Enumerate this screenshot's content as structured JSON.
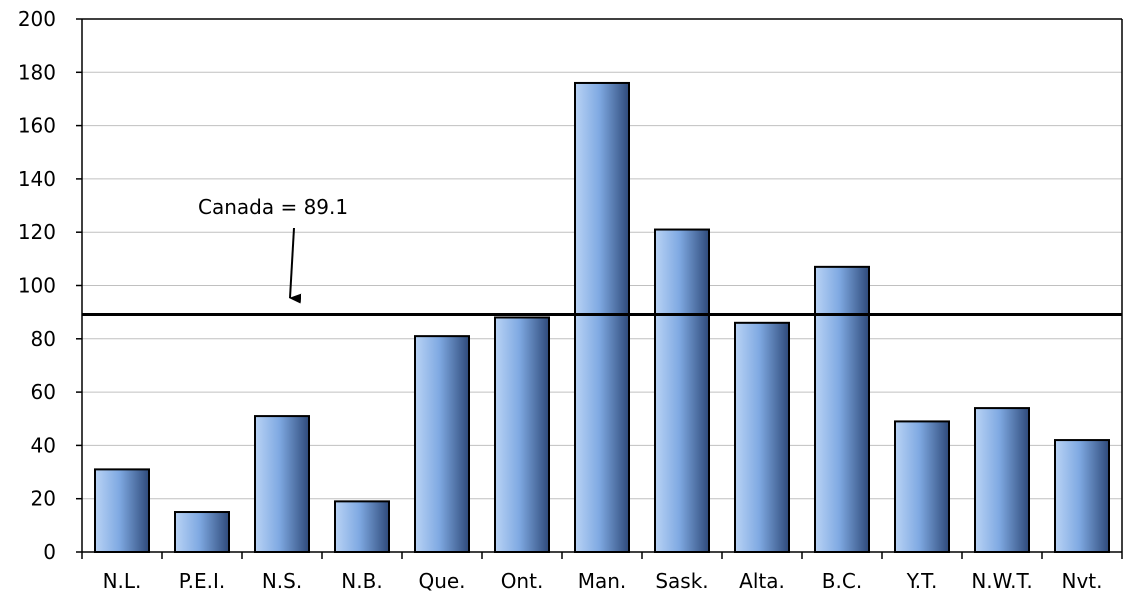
{
  "chart_data": {
    "type": "bar",
    "title": "",
    "xlabel": "",
    "ylabel": "",
    "categories": [
      "N.L.",
      "P.E.I.",
      "N.S.",
      "N.B.",
      "Que.",
      "Ont.",
      "Man.",
      "Sask.",
      "Alta.",
      "B.C.",
      "Y.T.",
      "N.W.T.",
      "Nvt."
    ],
    "values": [
      31,
      15,
      51,
      19,
      81,
      88,
      176,
      121,
      86,
      107,
      49,
      54,
      42
    ],
    "ylim": [
      0,
      200
    ],
    "yticks": [
      0,
      20,
      40,
      60,
      80,
      100,
      120,
      140,
      160,
      180,
      200
    ],
    "ytick_labels": [
      "0",
      "20",
      "40",
      "60",
      "80",
      "100",
      "120",
      "140",
      "160",
      "180",
      "200"
    ],
    "grid": true,
    "legend": "none",
    "reference_line": {
      "value": 89.1,
      "label": "Canada = 89.1"
    },
    "colors": {
      "bar_light": "#b9d3f5",
      "bar_mid": "#7fa9e2",
      "bar_dark": "#2e4a7a",
      "bar_outline": "#000000",
      "grid": "#c0c0c0",
      "reference_line": "#000000"
    }
  }
}
